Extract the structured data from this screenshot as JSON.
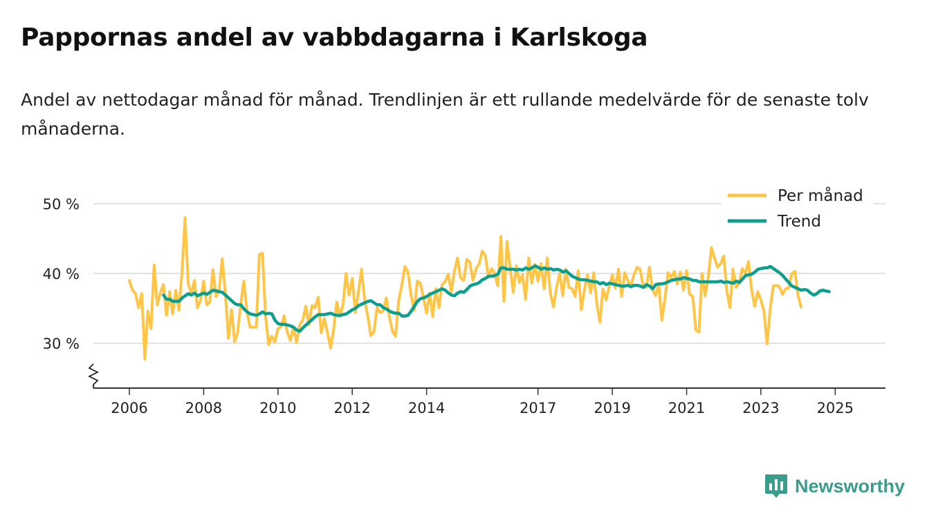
{
  "title": "Pappornas andel av vabbdagarna i Karlskoga",
  "subtitle": "Andel av nettodagar månad för månad. Trendlinjen är ett rullande medelvärde för de senaste tolv månaderna.",
  "brand": "Newsworthy",
  "colors": {
    "monthly": "#FFC547",
    "trend": "#0E9E8E",
    "grid": "#d9d9d9",
    "axis": "#333333"
  },
  "chart_data": {
    "type": "line",
    "title": "Pappornas andel av vabbdagarna i Karlskoga",
    "xlabel": "",
    "ylabel": "",
    "ylim": [
      24,
      52
    ],
    "xlim": [
      2005.5,
      2026.25
    ],
    "x_ticks": [
      2006,
      2008,
      2010,
      2012,
      2014,
      2017,
      2019,
      2021,
      2023,
      2025
    ],
    "x_tick_labels": [
      "2006",
      "2008",
      "2010",
      "2012",
      "2014",
      "2017",
      "2019",
      "2021",
      "2023",
      "2025"
    ],
    "y_ticks": [
      30,
      40,
      50
    ],
    "y_tick_labels": [
      "30 %",
      "40 %",
      "50 %"
    ],
    "grid": true,
    "legend_position": "top-right",
    "series": [
      {
        "name": "Per månad",
        "start": 2006.0,
        "step": 0.08333,
        "values": [
          39.0,
          37.6,
          37.1,
          35.1,
          37.1,
          27.7,
          34.6,
          32.1,
          41.2,
          35.5,
          37.2,
          38.4,
          34.0,
          37.4,
          34.2,
          37.6,
          34.7,
          40.2,
          48.0,
          38.6,
          37.1,
          39.0,
          35.1,
          36.2,
          38.9,
          35.5,
          35.9,
          40.5,
          36.7,
          37.6,
          42.1,
          37.2,
          30.7,
          34.8,
          30.2,
          31.6,
          35.7,
          38.9,
          34.5,
          32.3,
          32.3,
          32.3,
          42.7,
          42.9,
          33.8,
          29.8,
          31.0,
          30.2,
          32.1,
          32.4,
          33.9,
          31.6,
          30.4,
          32.3,
          30.1,
          32.6,
          33.3,
          35.3,
          32.6,
          35.4,
          35.1,
          36.6,
          31.5,
          33.5,
          31.5,
          29.3,
          32.0,
          35.9,
          33.8,
          35.5,
          40.0,
          36.9,
          39.3,
          34.4,
          37.3,
          40.6,
          36.2,
          33.9,
          31.1,
          31.6,
          35.1,
          34.4,
          34.6,
          36.5,
          33.8,
          31.7,
          31.0,
          36.1,
          38.3,
          41.0,
          40.2,
          36.9,
          34.7,
          38.9,
          38.6,
          36.5,
          34.3,
          37.2,
          33.8,
          37.8,
          35.1,
          38.4,
          38.8,
          39.9,
          37.4,
          40.3,
          42.2,
          39.4,
          39.0,
          42.0,
          41.6,
          39.0,
          40.7,
          41.4,
          43.2,
          42.6,
          39.5,
          40.7,
          40.0,
          38.2,
          45.3,
          36.0,
          44.6,
          40.8,
          37.3,
          41.1,
          38.7,
          39.8,
          36.3,
          42.2,
          38.6,
          41.3,
          38.9,
          41.4,
          37.8,
          42.2,
          37.1,
          35.2,
          38.0,
          40.0,
          36.8,
          40.6,
          38.0,
          37.8,
          36.7,
          40.4,
          34.8,
          37.7,
          39.8,
          37.2,
          40.1,
          35.7,
          33.0,
          37.8,
          36.2,
          38.1,
          39.8,
          37.9,
          40.6,
          36.7,
          40.1,
          39.0,
          38.2,
          39.8,
          40.9,
          40.6,
          38.2,
          38.0,
          40.9,
          37.7,
          36.8,
          38.5,
          33.3,
          36.3,
          40.1,
          39.4,
          40.3,
          38.5,
          40.2,
          37.6,
          40.4,
          37.0,
          36.7,
          31.9,
          31.6,
          40.0,
          36.8,
          39.4,
          43.7,
          42.3,
          40.9,
          41.4,
          42.5,
          37.5,
          35.1,
          40.6,
          38.0,
          38.6,
          40.7,
          40.0,
          41.7,
          37.7,
          35.3,
          37.4,
          36.2,
          34.6,
          29.9,
          34.9,
          38.2,
          38.3,
          38.1,
          37.0,
          37.8,
          37.9,
          40.0,
          40.3,
          36.8,
          35.2
        ]
      },
      {
        "name": "Trend",
        "start": 2006.92,
        "step": 0.08333,
        "values": [
          36.9,
          36.3,
          36.3,
          36.0,
          36.0,
          36.0,
          36.5,
          36.8,
          37.1,
          36.9,
          37.2,
          36.8,
          37.0,
          37.2,
          37.0,
          37.3,
          37.6,
          37.5,
          37.4,
          37.3,
          36.9,
          36.5,
          36.1,
          35.7,
          35.5,
          35.5,
          34.9,
          34.5,
          34.2,
          34.1,
          34.0,
          34.2,
          34.5,
          34.2,
          34.3,
          34.2,
          33.3,
          32.8,
          32.7,
          32.7,
          32.6,
          32.5,
          32.3,
          31.9,
          31.7,
          32.2,
          32.6,
          33.0,
          33.4,
          33.8,
          34.1,
          34.1,
          34.1,
          34.2,
          34.3,
          34.1,
          34.0,
          34.0,
          34.1,
          34.2,
          34.5,
          34.8,
          35.0,
          35.4,
          35.6,
          35.8,
          36.0,
          36.1,
          35.8,
          35.5,
          35.5,
          35.1,
          34.9,
          34.6,
          34.4,
          34.3,
          34.3,
          33.9,
          33.9,
          34.0,
          34.6,
          35.3,
          36.0,
          36.4,
          36.5,
          36.7,
          37.0,
          37.2,
          37.4,
          37.6,
          37.8,
          37.6,
          37.2,
          36.9,
          36.8,
          37.2,
          37.4,
          37.3,
          37.7,
          38.2,
          38.4,
          38.5,
          38.7,
          39.1,
          39.3,
          39.6,
          39.6,
          39.7,
          39.9,
          40.8,
          40.8,
          40.6,
          40.6,
          40.6,
          40.5,
          40.6,
          40.5,
          40.8,
          40.6,
          40.8,
          41.1,
          40.9,
          40.6,
          40.8,
          40.6,
          40.7,
          40.5,
          40.6,
          40.5,
          40.2,
          40.4,
          40.0,
          39.6,
          39.4,
          39.2,
          39.1,
          39.1,
          39.0,
          38.9,
          38.8,
          38.8,
          38.5,
          38.7,
          38.4,
          38.6,
          38.5,
          38.4,
          38.3,
          38.2,
          38.2,
          38.3,
          38.1,
          38.3,
          38.3,
          38.2,
          38.0,
          38.4,
          38.2,
          37.8,
          38.4,
          38.5,
          38.5,
          38.6,
          38.8,
          39.0,
          39.1,
          39.2,
          39.2,
          39.4,
          39.3,
          39.2,
          39.0,
          39.0,
          38.8,
          38.8,
          38.8,
          38.8,
          38.8,
          38.8,
          38.8,
          38.9,
          38.7,
          38.8,
          38.7,
          38.6,
          38.9,
          38.7,
          39.2,
          39.7,
          39.8,
          39.9,
          40.2,
          40.6,
          40.7,
          40.8,
          40.8,
          41.0,
          40.7,
          40.4,
          40.1,
          39.7,
          39.2,
          38.7,
          38.2,
          38.0,
          37.8,
          37.6,
          37.7,
          37.6,
          37.2,
          36.9,
          37.1,
          37.5,
          37.6,
          37.5,
          37.4
        ]
      }
    ]
  }
}
